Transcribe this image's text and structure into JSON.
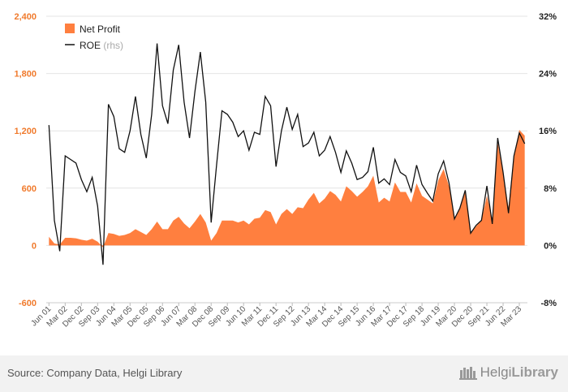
{
  "chart_data": {
    "type": "area+line",
    "x": [
      "Jun 01",
      "Sep 01",
      "Dec 01",
      "Mar 02",
      "Jun 02",
      "Sep 02",
      "Dec 02",
      "Mar 03",
      "Jun 03",
      "Sep 03",
      "Dec 03",
      "Mar 04",
      "Jun 04",
      "Sep 04",
      "Dec 04",
      "Mar 05",
      "Jun 05",
      "Sep 05",
      "Dec 05",
      "Mar 06",
      "Jun 06",
      "Sep 06",
      "Dec 06",
      "Mar 07",
      "Jun 07",
      "Sep 07",
      "Dec 07",
      "Mar 08",
      "Jun 08",
      "Sep 08",
      "Dec 08",
      "Mar 09",
      "Jun 09",
      "Sep 09",
      "Dec 09",
      "Mar 10",
      "Jun 10",
      "Sep 10",
      "Dec 10",
      "Mar 11",
      "Jun 11",
      "Sep 11",
      "Dec 11",
      "Mar 12",
      "Jun 12",
      "Sep 12",
      "Dec 12",
      "Mar 13",
      "Jun 13",
      "Sep 13",
      "Dec 13",
      "Mar 14",
      "Jun 14",
      "Sep 14",
      "Dec 14",
      "Mar 15",
      "Jun 15",
      "Sep 15",
      "Dec 15",
      "Mar 16",
      "Jun 16",
      "Sep 16",
      "Dec 16",
      "Mar 17",
      "Jun 17",
      "Sep 17",
      "Dec 17",
      "Mar 18",
      "Jun 18",
      "Sep 18",
      "Dec 18",
      "Mar 19",
      "Jun 19",
      "Sep 19",
      "Dec 19",
      "Mar 20",
      "Jun 20",
      "Sep 20",
      "Dec 20",
      "Mar 21",
      "Jun 21",
      "Sep 21",
      "Dec 21",
      "Mar 22",
      "Jun 22",
      "Sep 22",
      "Dec 22",
      "Mar 23",
      "Jun 23"
    ],
    "x_tick_labels": [
      "Jun 01",
      "Mar 02",
      "Dec 02",
      "Sep 03",
      "Jun 04",
      "Mar 05",
      "Dec 05",
      "Sep 06",
      "Jun 07",
      "Mar 08",
      "Dec 08",
      "Sep 09",
      "Jun 10",
      "Mar 11",
      "Dec 11",
      "Sep 12",
      "Jun 13",
      "Mar 14",
      "Dec 14",
      "Sep 15",
      "Jun 16",
      "Mar 17",
      "Dec 17",
      "Sep 18",
      "Jun 19",
      "Mar 20",
      "Dec 20",
      "Sep 21",
      "Jun 22",
      "Mar 23"
    ],
    "series": [
      {
        "name": "Net Profit",
        "type": "area",
        "axis": "left",
        "color": "#ff7f3f",
        "values": [
          90,
          20,
          10,
          80,
          80,
          75,
          60,
          50,
          70,
          40,
          -20,
          130,
          120,
          100,
          110,
          130,
          170,
          140,
          110,
          170,
          250,
          170,
          170,
          260,
          300,
          230,
          180,
          250,
          330,
          240,
          50,
          130,
          260,
          260,
          260,
          240,
          260,
          220,
          280,
          290,
          370,
          350,
          220,
          330,
          380,
          330,
          400,
          390,
          480,
          550,
          440,
          490,
          570,
          530,
          460,
          620,
          570,
          510,
          560,
          620,
          730,
          450,
          500,
          460,
          660,
          560,
          560,
          450,
          650,
          520,
          480,
          440,
          680,
          800,
          620,
          280,
          400,
          570,
          130,
          200,
          260,
          520,
          280,
          1080,
          750,
          400,
          950,
          1210,
          1150
        ]
      },
      {
        "name": "ROE",
        "type": "line",
        "axis": "right",
        "color": "#111111",
        "values": [
          16.8,
          3.5,
          -0.8,
          12.5,
          12.0,
          11.5,
          9.2,
          7.5,
          9.5,
          5.5,
          -2.7,
          19.7,
          18.0,
          13.5,
          13.0,
          16.0,
          20.8,
          15.5,
          12.2,
          18.3,
          28.2,
          19.5,
          17.0,
          24.5,
          28.0,
          20.0,
          15.0,
          21.5,
          27.0,
          20.0,
          3.2,
          11.2,
          18.8,
          18.3,
          17.2,
          15.2,
          16.0,
          13.3,
          15.8,
          15.5,
          20.8,
          19.5,
          11.0,
          16.0,
          19.3,
          16.2,
          18.3,
          13.8,
          14.3,
          15.8,
          12.5,
          13.3,
          15.2,
          13.0,
          10.2,
          13.2,
          11.5,
          9.2,
          9.5,
          10.3,
          13.7,
          8.7,
          9.3,
          8.5,
          12.0,
          10.2,
          9.7,
          7.5,
          11.2,
          8.5,
          7.3,
          6.2,
          10.0,
          11.8,
          8.7,
          3.7,
          5.2,
          7.7,
          1.7,
          2.8,
          3.5,
          8.3,
          3.0,
          15.0,
          10.2,
          4.5,
          12.5,
          15.7,
          14.2
        ]
      }
    ],
    "y_left": {
      "min": -600,
      "max": 2400,
      "ticks": [
        -600,
        0,
        600,
        1200,
        1800,
        2400
      ],
      "tick_labels": [
        "-600",
        "0",
        "600",
        "1,200",
        "1,800",
        "2,400"
      ]
    },
    "y_right": {
      "min": -8,
      "max": 32,
      "ticks": [
        -8,
        0,
        8,
        16,
        24,
        32
      ],
      "tick_labels": [
        "-8%",
        "0%",
        "8%",
        "16%",
        "24%",
        "32%"
      ]
    },
    "grid": true,
    "legend": {
      "placement": "top-left",
      "entries": [
        {
          "label": "Net Profit"
        },
        {
          "label": "ROE",
          "suffix": "(rhs)"
        }
      ]
    }
  },
  "footer": {
    "source": "Source: Company Data, Helgi Library",
    "brand_part1": "Helgi",
    "brand_part2": "Library"
  }
}
